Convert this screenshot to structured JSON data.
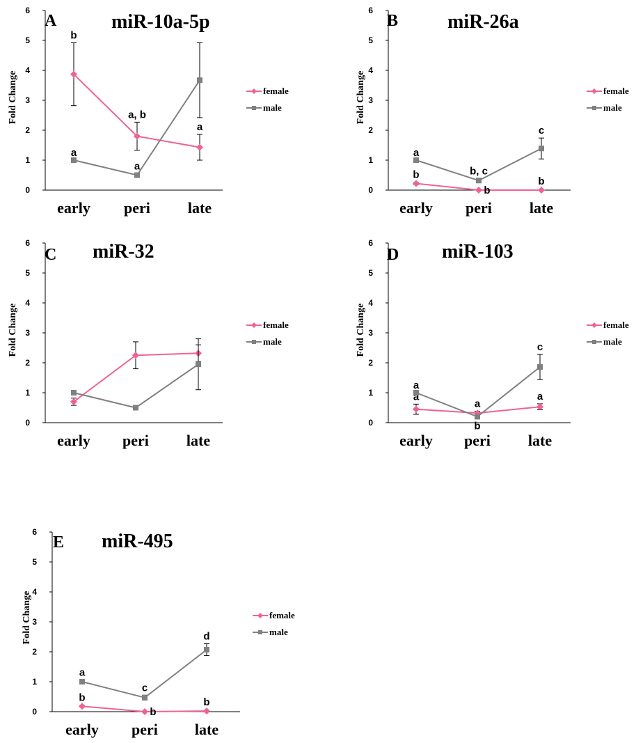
{
  "chart_data": [
    {
      "type": "line",
      "panel": "A",
      "title": "miR-10a-5p",
      "ylabel": "Fold Change",
      "ylim": [
        0,
        6
      ],
      "yticks": [
        "0",
        "1",
        "2",
        "3",
        "4",
        "5",
        "6"
      ],
      "categories": [
        "early",
        "peri",
        "late"
      ],
      "legend_position": "right",
      "series": [
        {
          "name": "female",
          "color": "#f06292",
          "marker": "diamond",
          "values": [
            3.87,
            1.8,
            1.43
          ],
          "err": [
            1.05,
            0.47,
            0.43
          ],
          "sig": [
            "b",
            "a, b",
            "a"
          ]
        },
        {
          "name": "male",
          "color": "#808080",
          "marker": "square",
          "values": [
            1.0,
            0.5,
            3.67
          ],
          "err": [
            0.0,
            0.05,
            1.25
          ],
          "sig": [
            "a",
            "a",
            ""
          ]
        }
      ]
    },
    {
      "type": "line",
      "panel": "B",
      "title": "miR-26a",
      "ylabel": "Fold Change",
      "ylim": [
        0,
        6
      ],
      "yticks": [
        "0",
        "1",
        "2",
        "3",
        "4",
        "5",
        "6"
      ],
      "categories": [
        "early",
        "peri",
        "late"
      ],
      "legend_position": "right",
      "series": [
        {
          "name": "female",
          "color": "#f06292",
          "marker": "diamond",
          "values": [
            0.22,
            0.0,
            0.0
          ],
          "err": [
            0.03,
            0.0,
            0.0
          ],
          "sig": [
            "b",
            "b",
            "b"
          ]
        },
        {
          "name": "male",
          "color": "#808080",
          "marker": "square",
          "values": [
            1.0,
            0.32,
            1.39
          ],
          "err": [
            0.0,
            0.06,
            0.35
          ],
          "sig": [
            "a",
            "b, c",
            "c"
          ]
        }
      ]
    },
    {
      "type": "line",
      "panel": "C",
      "title": "miR-32",
      "ylabel": "Fold Change",
      "ylim": [
        0,
        6
      ],
      "yticks": [
        "0",
        "1",
        "2",
        "3",
        "4",
        "5",
        "6"
      ],
      "categories": [
        "early",
        "peri",
        "late"
      ],
      "legend_position": "right",
      "series": [
        {
          "name": "female",
          "color": "#f06292",
          "marker": "diamond",
          "values": [
            0.7,
            2.25,
            2.32
          ],
          "err": [
            0.12,
            0.45,
            0.28
          ],
          "sig": [
            "",
            "",
            ""
          ]
        },
        {
          "name": "male",
          "color": "#808080",
          "marker": "square",
          "values": [
            1.0,
            0.5,
            1.95
          ],
          "err": [
            0.0,
            0.08,
            0.85
          ],
          "sig": [
            "",
            "",
            ""
          ]
        }
      ]
    },
    {
      "type": "line",
      "panel": "D",
      "title": "miR-103",
      "ylabel": "Fold Change",
      "ylim": [
        0,
        6
      ],
      "yticks": [
        "0",
        "1",
        "2",
        "3",
        "4",
        "5",
        "6"
      ],
      "categories": [
        "early",
        "peri",
        "late"
      ],
      "legend_position": "right",
      "series": [
        {
          "name": "female",
          "color": "#f06292",
          "marker": "diamond",
          "values": [
            0.45,
            0.32,
            0.53
          ],
          "err": [
            0.17,
            0.06,
            0.1
          ],
          "sig": [
            "a",
            "a",
            "a"
          ]
        },
        {
          "name": "male",
          "color": "#808080",
          "marker": "square",
          "values": [
            1.0,
            0.2,
            1.86
          ],
          "err": [
            0.0,
            0.06,
            0.42
          ],
          "sig": [
            "a",
            "b",
            "c"
          ]
        }
      ]
    },
    {
      "type": "line",
      "panel": "E",
      "title": "miR-495",
      "ylabel": "Fold Change",
      "ylim": [
        0,
        6
      ],
      "yticks": [
        "0",
        "1",
        "2",
        "3",
        "4",
        "5",
        "6"
      ],
      "categories": [
        "early",
        "peri",
        "late"
      ],
      "legend_position": "right",
      "series": [
        {
          "name": "female",
          "color": "#f06292",
          "marker": "diamond",
          "values": [
            0.18,
            0.0,
            0.02
          ],
          "err": [
            0.02,
            0.0,
            0.0
          ],
          "sig": [
            "b",
            "b",
            "b"
          ]
        },
        {
          "name": "male",
          "color": "#808080",
          "marker": "square",
          "values": [
            1.0,
            0.47,
            2.07
          ],
          "err": [
            0.06,
            0.08,
            0.2
          ],
          "sig": [
            "a",
            "c",
            "d"
          ]
        }
      ]
    }
  ]
}
